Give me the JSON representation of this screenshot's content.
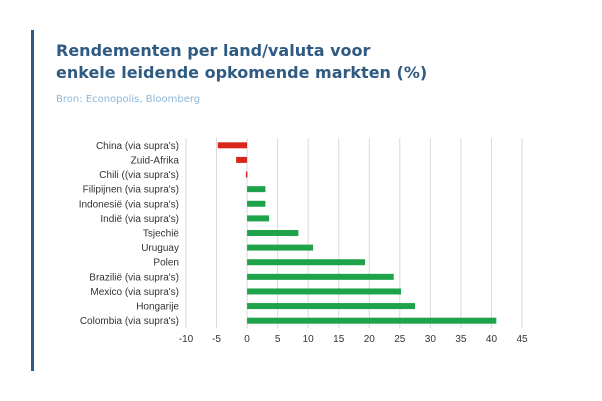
{
  "header": {
    "title_line1": "Rendementen per land/valuta voor",
    "title_line2": "enkele leidende opkomende markten (%)",
    "source": "Bron: Econopolis, Bloomberg"
  },
  "colors": {
    "accent": "#2f5a82",
    "source_text": "#8cb7d6",
    "positive_bar": "#1fa34a",
    "negative_bar": "#d7261e",
    "gridline": "#d9d9d9"
  },
  "chart_data": {
    "type": "bar",
    "orientation": "horizontal",
    "categories": [
      "China (via supra's)",
      "Zuid-Afrika",
      "Chili ((via supra's)",
      "Filipijnen (via supra's)",
      "Indonesië (via supra's)",
      "Indië (via supra's)",
      "Tsjechië",
      "Uruguay",
      "Polen",
      "Brazilië (via supra's)",
      "Mexico (via supra's)",
      "Hongarije",
      "Colombia (via supra's)"
    ],
    "values": [
      -4.8,
      -1.8,
      -0.2,
      3.0,
      3.0,
      3.6,
      8.4,
      10.8,
      19.3,
      24.0,
      25.2,
      27.5,
      40.8
    ],
    "xlim": [
      -10,
      45
    ],
    "xticks": [
      -10,
      -5,
      0,
      5,
      10,
      15,
      20,
      25,
      30,
      35,
      40,
      45
    ],
    "grid": true
  }
}
